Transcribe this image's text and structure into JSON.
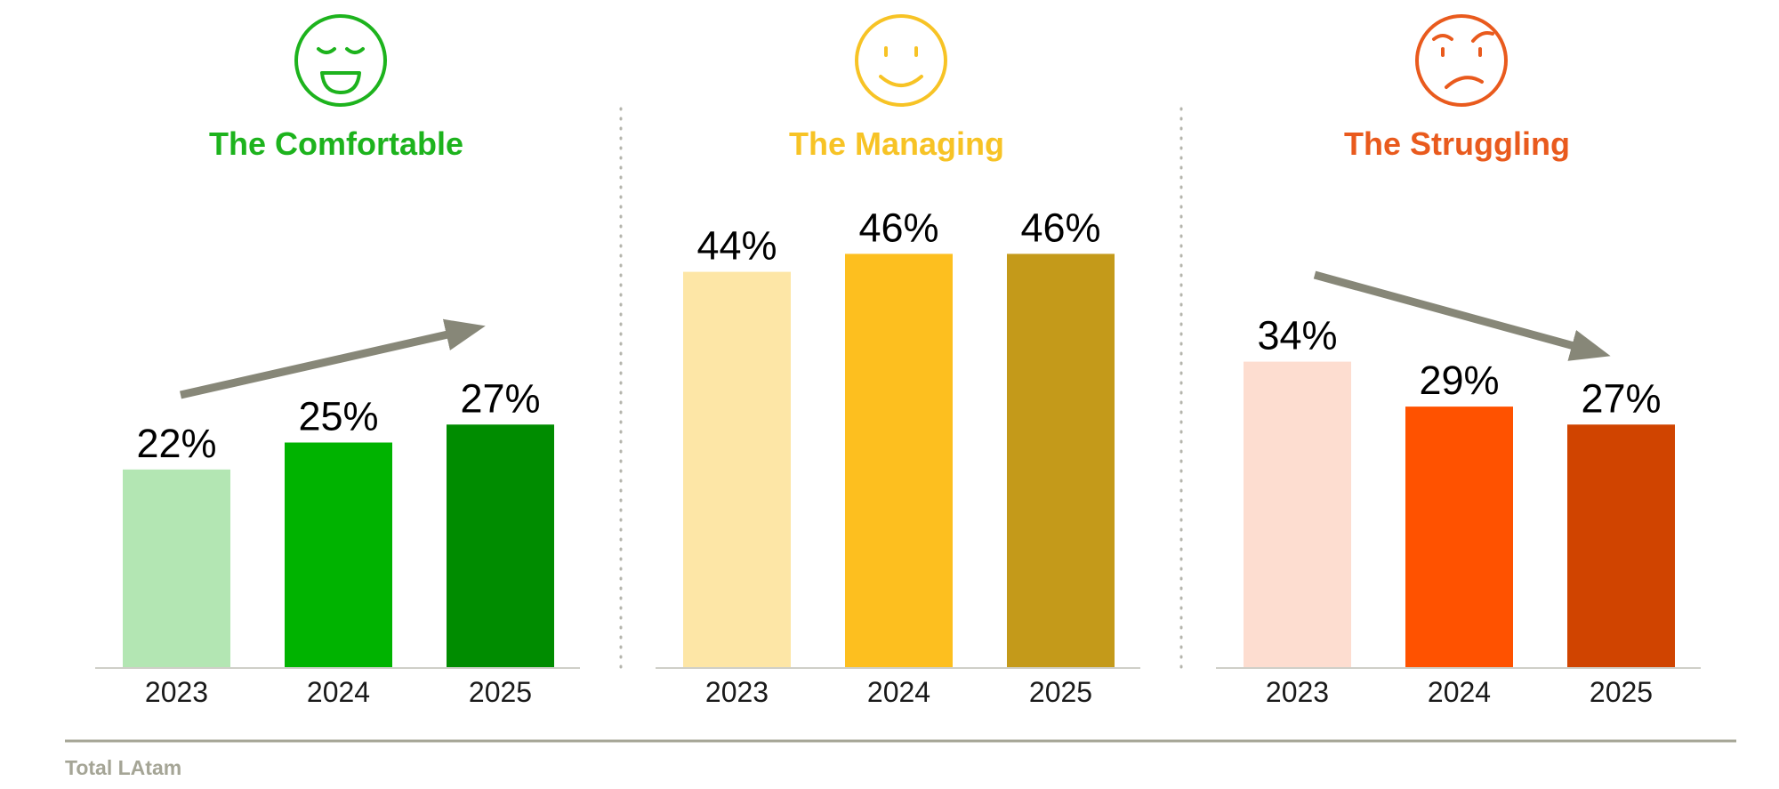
{
  "chart_data": [
    {
      "type": "bar",
      "title": "The Comfortable",
      "icon": "laughing-face-icon",
      "title_color": "#1db31d",
      "categories": [
        "2023",
        "2024",
        "2025"
      ],
      "values": [
        22,
        25,
        27
      ],
      "value_labels": [
        "22%",
        "25%",
        "27%"
      ],
      "colors": [
        "#b3e6b3",
        "#00b300",
        "#008c00"
      ],
      "trend": "up"
    },
    {
      "type": "bar",
      "title": "The Managing",
      "icon": "smiling-face-icon",
      "title_color": "#f7c325",
      "categories": [
        "2023",
        "2024",
        "2025"
      ],
      "values": [
        44,
        46,
        46
      ],
      "value_labels": [
        "44%",
        "46%",
        "46%"
      ],
      "colors": [
        "#fde6a6",
        "#fdbf1f",
        "#c49a1a"
      ],
      "trend": "none"
    },
    {
      "type": "bar",
      "title": "The Struggling",
      "icon": "annoyed-face-icon",
      "title_color": "#e95a1d",
      "categories": [
        "2023",
        "2024",
        "2025"
      ],
      "values": [
        34,
        29,
        27
      ],
      "value_labels": [
        "34%",
        "29%",
        "27%"
      ],
      "colors": [
        "#fdddd0",
        "#ff5200",
        "#d04400"
      ],
      "trend": "down"
    }
  ],
  "trend_arrow_color": "#878778",
  "footnote": "Total LAtam"
}
